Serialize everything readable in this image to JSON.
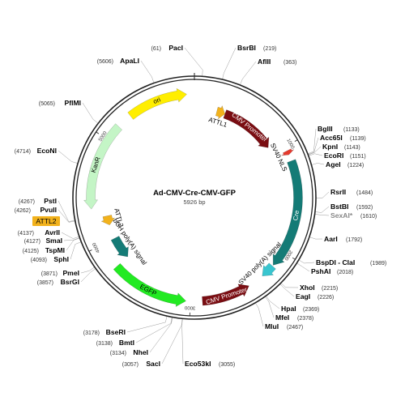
{
  "plasmid": {
    "name": "Ad-CMV-Cre-CMV-GFP",
    "length_label": "5926 bp",
    "length": 5926
  },
  "ticks": [
    {
      "position": 1000,
      "label": "1000"
    },
    {
      "position": 2000,
      "label": "2000"
    },
    {
      "position": 3000,
      "label": "3000"
    },
    {
      "position": 4000,
      "label": "4000"
    },
    {
      "position": 5000,
      "label": "5000"
    }
  ],
  "features": [
    {
      "name": "ori",
      "start": 5300,
      "end": 5856,
      "direction": "forward",
      "color": "#ffee00",
      "label_color": "#000000",
      "lane": "outer"
    },
    {
      "name": "ATTL1",
      "start": 240,
      "end": 330,
      "direction": "forward",
      "color": "#f2b21c",
      "label_color": "#000000",
      "lane": "inner"
    },
    {
      "name": "CMV Promoter",
      "start": 330,
      "end": 920,
      "direction": "forward",
      "color": "#7a0d12",
      "label_color": "#ffffff",
      "lane": "inner"
    },
    {
      "name": "SV40 NLS",
      "start": 1040,
      "end": 1080,
      "direction": "forward",
      "color": "#e53a2e",
      "label_color": "#000000",
      "lane": "outer"
    },
    {
      "name": "Cre",
      "start": 1140,
      "end": 2150,
      "direction": "forward",
      "color": "#147b76",
      "label_color": "#ffffff",
      "lane": "outer"
    },
    {
      "name": "SV40 poly(A) signal",
      "start": 2160,
      "end": 2290,
      "direction": "forward",
      "color": "#39c5cf",
      "label_color": "#000000",
      "lane": "outer"
    },
    {
      "name": "CMV Promoter",
      "start": 2440,
      "end": 2890,
      "direction": "reverse",
      "color": "#7a0d12",
      "label_color": "#ffffff",
      "lane": "outer"
    },
    {
      "name": "EGFP",
      "start": 3040,
      "end": 3760,
      "direction": "reverse",
      "color": "#22ea22",
      "label_color": "#000000",
      "lane": "outer"
    },
    {
      "name": "bGH poly(A) signal",
      "start": 3760,
      "end": 4000,
      "direction": "reverse",
      "color": "#147b76",
      "label_color": "#000000",
      "lane": "inner"
    },
    {
      "name": "ATTL2",
      "start": 4150,
      "end": 4250,
      "direction": "reverse",
      "color": "#f2b21c",
      "label_color": "#000000",
      "lane": "inner"
    },
    {
      "name": "KanR",
      "start": 4340,
      "end": 5155,
      "direction": "reverse",
      "color": "#c4f5c6",
      "label_color": "#000000",
      "lane": "outer"
    }
  ],
  "feature_box": {
    "name": "ATTL2",
    "color": "#f2b21c"
  },
  "sites": [
    {
      "name": "PacI",
      "position_label": "(61)",
      "position": 61,
      "faded": false
    },
    {
      "name": "BsrBI",
      "position_label": "(219)",
      "position": 219,
      "faded": false
    },
    {
      "name": "AflII",
      "position_label": "(363)",
      "position": 363,
      "faded": false
    },
    {
      "name": "BglII",
      "position_label": "(1133)",
      "position": 1133,
      "faded": false
    },
    {
      "name": "Acc65I",
      "position_label": "(1139)",
      "position": 1139,
      "faded": false
    },
    {
      "name": "KpnI",
      "position_label": "(1143)",
      "position": 1143,
      "faded": false
    },
    {
      "name": "EcoRI",
      "position_label": "(1151)",
      "position": 1151,
      "faded": false
    },
    {
      "name": "AgeI",
      "position_label": "(1224)",
      "position": 1224,
      "faded": false
    },
    {
      "name": "RsrII",
      "position_label": "(1484)",
      "position": 1484,
      "faded": false
    },
    {
      "name": "BstBI",
      "position_label": "(1592)",
      "position": 1592,
      "faded": false
    },
    {
      "name": "SexAI*",
      "position_label": "(1610)",
      "position": 1610,
      "faded": true
    },
    {
      "name": "AarI",
      "position_label": "(1792)",
      "position": 1792,
      "faded": false
    },
    {
      "name": "BspDI - ClaI",
      "position_label": "(1989)",
      "position": 1989,
      "faded": false
    },
    {
      "name": "PshAI",
      "position_label": "(2018)",
      "position": 2018,
      "faded": false
    },
    {
      "name": "XhoI",
      "position_label": "(2215)",
      "position": 2215,
      "faded": false
    },
    {
      "name": "EagI",
      "position_label": "(2226)",
      "position": 2226,
      "faded": false
    },
    {
      "name": "HpaI",
      "position_label": "(2369)",
      "position": 2369,
      "faded": false
    },
    {
      "name": "MfeI",
      "position_label": "(2378)",
      "position": 2378,
      "faded": false
    },
    {
      "name": "MluI",
      "position_label": "(2467)",
      "position": 2467,
      "faded": false
    },
    {
      "name": "Eco53kI",
      "position_label": "(3055)",
      "position": 3055,
      "faded": false
    },
    {
      "name": "SacI",
      "position_label": "(3057)",
      "position": 3057,
      "faded": false
    },
    {
      "name": "NheI",
      "position_label": "(3134)",
      "position": 3134,
      "faded": false
    },
    {
      "name": "BmtI",
      "position_label": "(3138)",
      "position": 3138,
      "faded": false
    },
    {
      "name": "BseRI",
      "position_label": "(3178)",
      "position": 3178,
      "faded": false
    },
    {
      "name": "BsrGI",
      "position_label": "(3857)",
      "position": 3857,
      "faded": false
    },
    {
      "name": "PmeI",
      "position_label": "(3871)",
      "position": 3871,
      "faded": false
    },
    {
      "name": "SphI",
      "position_label": "(4093)",
      "position": 4093,
      "faded": false
    },
    {
      "name": "TspMI",
      "position_label": "(4125)",
      "position": 4125,
      "faded": false
    },
    {
      "name": "SmaI",
      "position_label": "(4127)",
      "position": 4127,
      "faded": false
    },
    {
      "name": "AvrII",
      "position_label": "(4137)",
      "position": 4137,
      "faded": false
    },
    {
      "name": "PvuII",
      "position_label": "(4262)",
      "position": 4262,
      "faded": false
    },
    {
      "name": "PstI",
      "position_label": "(4267)",
      "position": 4267,
      "faded": false
    },
    {
      "name": "EcoNI",
      "position_label": "(4714)",
      "position": 4714,
      "faded": false
    },
    {
      "name": "PflMI",
      "position_label": "(5065)",
      "position": 5065,
      "faded": false
    },
    {
      "name": "ApaLI",
      "position_label": "(5606)",
      "position": 5606,
      "faded": false
    }
  ]
}
